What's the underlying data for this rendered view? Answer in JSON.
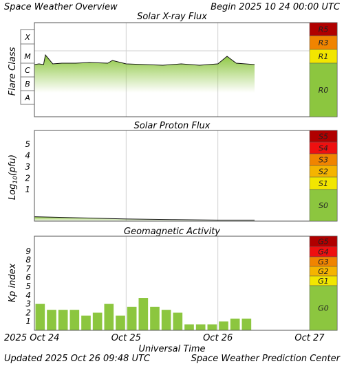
{
  "header": {
    "title": "Space Weather Overview",
    "begin_label": "Begin",
    "begin_value": "2025 10 24 00:00 UTC"
  },
  "footer": {
    "updated_label": "Updated",
    "updated_value": "2025 Oct 26 09:48 UTC",
    "credit": "Space Weather Prediction Center"
  },
  "x_axis": {
    "label": "Universal Time",
    "tick_labels": [
      "2025 Oct 24",
      "Oct 25",
      "Oct 26",
      "Oct 27"
    ],
    "range_days": [
      0,
      3
    ]
  },
  "colors": {
    "fill_green": "#8cc63f",
    "level_1": "#f2e600",
    "level_2": "#f5b400",
    "level_3": "#f08400",
    "level_4": "#ee1010",
    "level_5": "#b00000",
    "quiet": "#8cc63f"
  },
  "chart_data": [
    {
      "type": "area",
      "title": "Solar X-ray Flux",
      "ylabel": "Flare Class",
      "y_classes": [
        "X",
        "M",
        "C",
        "B",
        "A"
      ],
      "scale_labels": [
        "R5",
        "R3",
        "R1",
        "R0"
      ],
      "x_unit": "days since 2025 Oct 24 00:00 UTC",
      "x": [
        0.0,
        0.05,
        0.1,
        0.12,
        0.2,
        0.3,
        0.45,
        0.6,
        0.8,
        0.85,
        1.0,
        1.2,
        1.4,
        1.5,
        1.6,
        1.8,
        2.0,
        2.1,
        2.2,
        2.4
      ],
      "log_flux": [
        -6.1,
        -6.05,
        -6.1,
        -5.4,
        -6.05,
        -6.0,
        -6.0,
        -5.95,
        -6.0,
        -5.8,
        -6.05,
        -6.1,
        -6.15,
        -6.1,
        -6.05,
        -6.15,
        -6.05,
        -5.5,
        -6.0,
        -6.1
      ]
    },
    {
      "type": "area",
      "title": "Solar Proton Flux",
      "ylabel_base": "Log",
      "ylabel_sub": "10",
      "ylabel_unit": "(pfu)",
      "y_ticks": [
        "1",
        "2",
        "3",
        "4",
        "5"
      ],
      "scale_labels": [
        "S5",
        "S4",
        "S3",
        "S2",
        "S1",
        "S0"
      ],
      "x": [
        0.0,
        0.5,
        1.0,
        1.5,
        2.0,
        2.4
      ],
      "log_pfu": [
        -1.4,
        -1.5,
        -1.6,
        -1.65,
        -1.7,
        -1.7
      ]
    },
    {
      "type": "bar",
      "title": "Geomagnetic Activity",
      "ylabel": "Kp index",
      "y_ticks": [
        "1",
        "2",
        "3",
        "4",
        "5",
        "6",
        "7",
        "8",
        "9"
      ],
      "ylim": [
        0,
        10
      ],
      "scale_labels": [
        "G5",
        "G4",
        "G3",
        "G2",
        "G1",
        "G0"
      ],
      "bar_width_days": 0.125,
      "values": [
        3.0,
        2.33,
        2.33,
        2.33,
        1.67,
        2.0,
        3.0,
        1.67,
        2.67,
        3.67,
        2.67,
        2.33,
        2.0,
        0.67,
        0.67,
        0.67,
        1.0,
        1.33,
        1.33
      ]
    }
  ]
}
